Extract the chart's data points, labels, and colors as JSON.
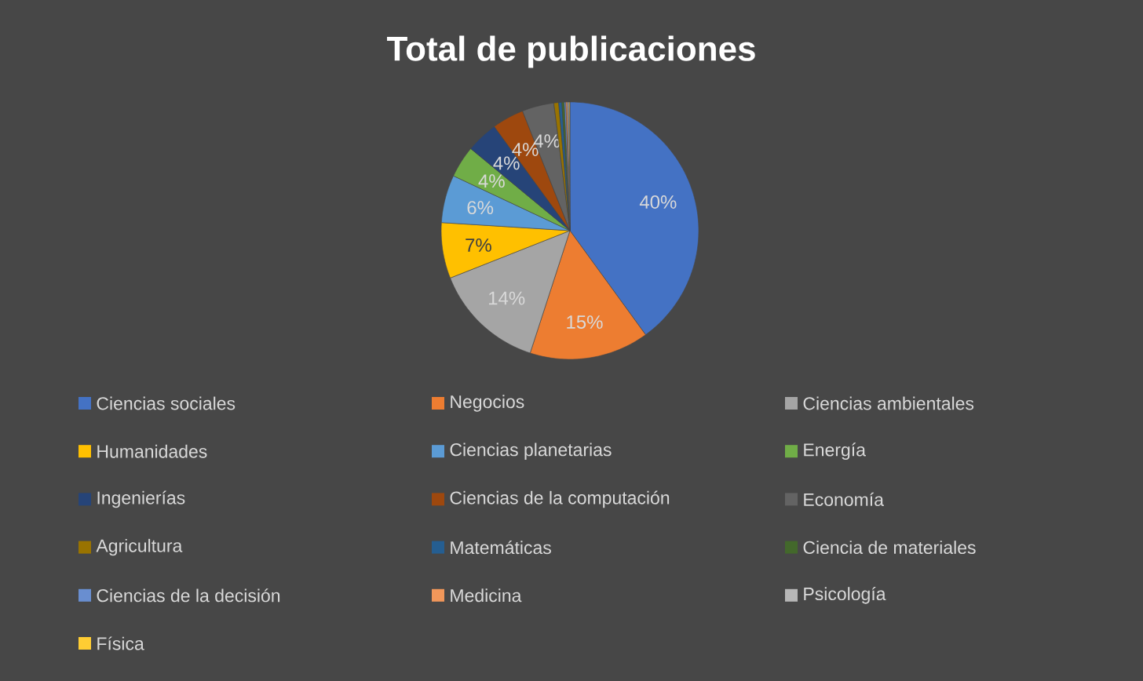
{
  "chart_data": {
    "type": "pie",
    "title": "Total de publicaciones",
    "categories": [
      "Ciencias sociales",
      "Negocios",
      "Ciencias ambientales",
      "Humanidades",
      "Ciencias planetarias",
      "Energía",
      "Ingenierías",
      "Ciencias de la computación",
      "Economía",
      "Agricultura",
      "Matemáticas",
      "Ciencia de materiales",
      "Ciencias de la decisión",
      "Medicina",
      "Psicología",
      "Física"
    ],
    "values": [
      40,
      15,
      14,
      7,
      6,
      4,
      4,
      4,
      4,
      0.6,
      0.4,
      0.3,
      0.2,
      0.2,
      0.2,
      0.1
    ],
    "value_labels": [
      "40%",
      "15%",
      "14%",
      "7%",
      "6%",
      "4%",
      "4%",
      "4%",
      "4%",
      null,
      null,
      null,
      null,
      null,
      null,
      null
    ],
    "colors": [
      "#4472c4",
      "#ed7d31",
      "#a5a5a5",
      "#ffc000",
      "#5b9bd5",
      "#70ad47",
      "#264478",
      "#9e480e",
      "#636363",
      "#997300",
      "#255e91",
      "#43682b",
      "#698ed0",
      "#f1975a",
      "#b7b7b7",
      "#ffcd33"
    ],
    "legend": "bottom"
  }
}
